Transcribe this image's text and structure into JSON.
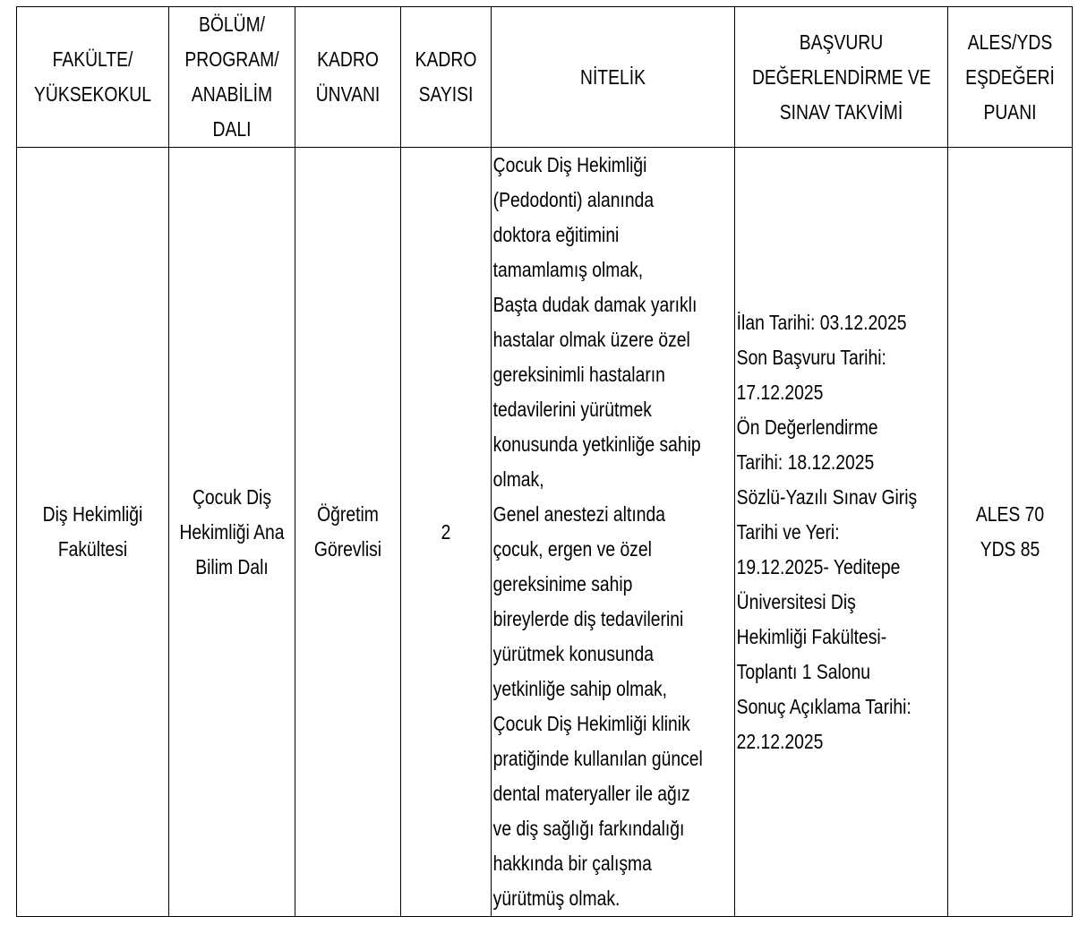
{
  "headers": [
    [
      "FAKÜLTE/",
      "YÜKSEKOKUL"
    ],
    [
      "BÖLÜM/",
      "PROGRAM/",
      "ANABİLİM",
      "DALI"
    ],
    [
      "KADRO",
      "ÜNVANI"
    ],
    [
      "KADRO",
      "SAYISI"
    ],
    [
      "NİTELİK"
    ],
    [
      "BAŞVURU",
      "DEĞERLENDİRME VE",
      "SINAV TAKVİMİ"
    ],
    [
      "ALES/YDS",
      "EŞDEĞERİ",
      "PUANI"
    ]
  ],
  "row": {
    "faculty": [
      "Diş Hekimliği",
      "Fakültesi"
    ],
    "department": [
      "Çocuk Diş",
      "Hekimliği Ana",
      "Bilim Dalı"
    ],
    "title": [
      "Öğretim",
      "Görevlisi"
    ],
    "count": [
      "2"
    ],
    "qualification": [
      "Çocuk Diş Hekimliği",
      "(Pedodonti) alanında",
      "doktora eğitimini",
      "tamamlamış olmak,",
      "Başta dudak damak yarıklı",
      "hastalar olmak üzere özel",
      "gereksinimli hastaların",
      "tedavilerini yürütmek",
      "konusunda yetkinliğe sahip",
      "olmak,",
      "Genel anestezi altında",
      "çocuk, ergen ve özel",
      "gereksinime sahip",
      "bireylerde diş tedavilerini",
      "yürütmek konusunda",
      "yetkinliğe sahip olmak,",
      "Çocuk Diş Hekimliği klinik",
      "pratiğinde kullanılan güncel",
      "dental materyaller ile ağız",
      "ve diş sağlığı farkındalığı",
      "hakkında bir çalışma",
      "yürütmüş olmak."
    ],
    "schedule": [
      "İlan Tarihi: 03.12.2025",
      "Son Başvuru Tarihi:",
      "17.12.2025",
      "Ön Değerlendirme",
      "Tarihi: 18.12.2025",
      "Sözlü-Yazılı Sınav Giriş",
      "Tarihi ve Yeri:",
      "19.12.2025- Yeditepe",
      "Üniversitesi Diş",
      "Hekimliği Fakültesi-",
      "Toplantı 1 Salonu",
      "Sonuç Açıklama Tarihi:",
      "22.12.2025"
    ],
    "scores": [
      "ALES 70",
      "YDS 85"
    ]
  }
}
